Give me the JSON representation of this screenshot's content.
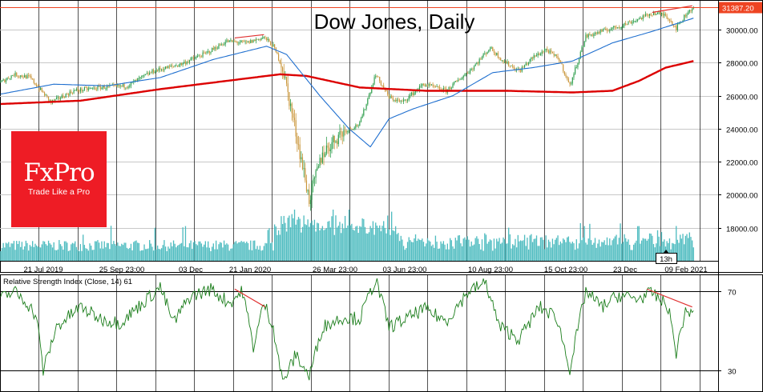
{
  "chart_data": [
    {
      "type": "candlestick",
      "title": "Dow Jones, Daily",
      "colors": {
        "up": "#2e9e4c",
        "down": "#c9963a",
        "ma_slow": "#dc0000",
        "ma_fast": "#1f6fcf",
        "volume": "#4fbcc0",
        "trendline": "#e03030",
        "price_line": "#ee4422"
      },
      "ylim": [
        16000,
        31800
      ],
      "yticks": [
        "30000.00",
        "28000.00",
        "26000.00",
        "24000.00",
        "22000.00",
        "20000.00",
        "18000.00"
      ],
      "yticks_values": [
        30000,
        28000,
        26000,
        24000,
        22000,
        20000,
        18000
      ],
      "x_tick_labels": [
        "21 Jul 2019",
        "25 Sep 23:00",
        "03 Dec",
        "21 Jan 2020",
        "26 Mar 23:00",
        "03 Jun 23:00",
        "10 Aug 23:00",
        "15 Oct 23:00",
        "23 Dec",
        "09 Feb 2021"
      ],
      "last_price_label": "31387.20",
      "last_price": 31387.2,
      "timer_label": "13h",
      "anchors": [
        {
          "t": 0,
          "price": 26800
        },
        {
          "t": 10,
          "price": 27300
        },
        {
          "t": 22,
          "price": 27100
        },
        {
          "t": 38,
          "price": 25600
        },
        {
          "t": 55,
          "price": 26300
        },
        {
          "t": 75,
          "price": 26500
        },
        {
          "t": 95,
          "price": 26600
        },
        {
          "t": 115,
          "price": 27500
        },
        {
          "t": 135,
          "price": 27900
        },
        {
          "t": 155,
          "price": 28600
        },
        {
          "t": 170,
          "price": 29300
        },
        {
          "t": 185,
          "price": 29200
        },
        {
          "t": 198,
          "price": 29550
        },
        {
          "t": 205,
          "price": 29000
        },
        {
          "t": 212,
          "price": 27700
        },
        {
          "t": 222,
          "price": 23800
        },
        {
          "t": 232,
          "price": 19700
        },
        {
          "t": 242,
          "price": 22500
        },
        {
          "t": 255,
          "price": 23700
        },
        {
          "t": 270,
          "price": 24300
        },
        {
          "t": 282,
          "price": 27300
        },
        {
          "t": 292,
          "price": 25900
        },
        {
          "t": 302,
          "price": 25600
        },
        {
          "t": 318,
          "price": 26700
        },
        {
          "t": 335,
          "price": 26300
        },
        {
          "t": 355,
          "price": 27700
        },
        {
          "t": 368,
          "price": 28900
        },
        {
          "t": 378,
          "price": 28100
        },
        {
          "t": 390,
          "price": 27500
        },
        {
          "t": 400,
          "price": 28300
        },
        {
          "t": 410,
          "price": 28800
        },
        {
          "t": 420,
          "price": 28200
        },
        {
          "t": 428,
          "price": 26600
        },
        {
          "t": 440,
          "price": 29600
        },
        {
          "t": 452,
          "price": 29900
        },
        {
          "t": 465,
          "price": 30200
        },
        {
          "t": 478,
          "price": 30600
        },
        {
          "t": 490,
          "price": 31000
        },
        {
          "t": 500,
          "price": 30900
        },
        {
          "t": 508,
          "price": 30100
        },
        {
          "t": 516,
          "price": 31000
        },
        {
          "t": 521,
          "price": 31387
        }
      ],
      "ma_fast": [
        {
          "t": 0,
          "price": 26100
        },
        {
          "t": 40,
          "price": 26700
        },
        {
          "t": 80,
          "price": 26600
        },
        {
          "t": 120,
          "price": 27100
        },
        {
          "t": 160,
          "price": 28200
        },
        {
          "t": 200,
          "price": 29000
        },
        {
          "t": 215,
          "price": 28500
        },
        {
          "t": 240,
          "price": 26000
        },
        {
          "t": 262,
          "price": 24000
        },
        {
          "t": 278,
          "price": 22900
        },
        {
          "t": 292,
          "price": 24600
        },
        {
          "t": 310,
          "price": 25200
        },
        {
          "t": 340,
          "price": 26000
        },
        {
          "t": 370,
          "price": 27400
        },
        {
          "t": 400,
          "price": 27700
        },
        {
          "t": 430,
          "price": 28100
        },
        {
          "t": 460,
          "price": 29200
        },
        {
          "t": 490,
          "price": 29900
        },
        {
          "t": 521,
          "price": 30700
        }
      ],
      "ma_slow": [
        {
          "t": 0,
          "price": 25500
        },
        {
          "t": 60,
          "price": 25700
        },
        {
          "t": 120,
          "price": 26400
        },
        {
          "t": 170,
          "price": 26900
        },
        {
          "t": 210,
          "price": 27300
        },
        {
          "t": 230,
          "price": 27200
        },
        {
          "t": 270,
          "price": 26500
        },
        {
          "t": 320,
          "price": 26300
        },
        {
          "t": 380,
          "price": 26300
        },
        {
          "t": 430,
          "price": 26200
        },
        {
          "t": 460,
          "price": 26300
        },
        {
          "t": 480,
          "price": 26900
        },
        {
          "t": 500,
          "price": 27700
        },
        {
          "t": 521,
          "price": 28100
        }
      ],
      "trendlines": [
        {
          "from": {
            "t": 176,
            "price": 29500
          },
          "to": {
            "t": 198,
            "price": 29700
          }
        },
        {
          "from": {
            "t": 490,
            "price": 31050
          },
          "to": {
            "t": 520,
            "price": 31450
          }
        }
      ]
    },
    {
      "type": "line",
      "title": "Relative Strength Index (Close, 14) 61",
      "ylim": [
        20,
        78
      ],
      "levels": [
        70,
        30
      ],
      "level_labels": [
        "70",
        "30"
      ],
      "anchors": [
        {
          "t": 0,
          "value": 66
        },
        {
          "t": 10,
          "value": 70
        },
        {
          "t": 20,
          "value": 64
        },
        {
          "t": 27,
          "value": 57
        },
        {
          "t": 32,
          "value": 30
        },
        {
          "t": 42,
          "value": 52
        },
        {
          "t": 60,
          "value": 62
        },
        {
          "t": 75,
          "value": 56
        },
        {
          "t": 90,
          "value": 54
        },
        {
          "t": 105,
          "value": 63
        },
        {
          "t": 120,
          "value": 72
        },
        {
          "t": 130,
          "value": 54
        },
        {
          "t": 142,
          "value": 67
        },
        {
          "t": 158,
          "value": 71
        },
        {
          "t": 172,
          "value": 64
        },
        {
          "t": 182,
          "value": 70
        },
        {
          "t": 190,
          "value": 42
        },
        {
          "t": 198,
          "value": 64
        },
        {
          "t": 205,
          "value": 52
        },
        {
          "t": 212,
          "value": 24
        },
        {
          "t": 222,
          "value": 38
        },
        {
          "t": 232,
          "value": 27
        },
        {
          "t": 242,
          "value": 52
        },
        {
          "t": 258,
          "value": 57
        },
        {
          "t": 270,
          "value": 56
        },
        {
          "t": 282,
          "value": 76
        },
        {
          "t": 292,
          "value": 52
        },
        {
          "t": 305,
          "value": 56
        },
        {
          "t": 318,
          "value": 61
        },
        {
          "t": 335,
          "value": 55
        },
        {
          "t": 352,
          "value": 70
        },
        {
          "t": 365,
          "value": 74
        },
        {
          "t": 375,
          "value": 52
        },
        {
          "t": 390,
          "value": 46
        },
        {
          "t": 405,
          "value": 62
        },
        {
          "t": 418,
          "value": 57
        },
        {
          "t": 428,
          "value": 31
        },
        {
          "t": 440,
          "value": 70
        },
        {
          "t": 452,
          "value": 62
        },
        {
          "t": 465,
          "value": 68
        },
        {
          "t": 478,
          "value": 66
        },
        {
          "t": 490,
          "value": 69
        },
        {
          "t": 502,
          "value": 62
        },
        {
          "t": 508,
          "value": 39
        },
        {
          "t": 514,
          "value": 58
        },
        {
          "t": 521,
          "value": 61
        }
      ],
      "trendline": {
        "from": {
          "t": 176,
          "value": 71
        },
        "to": {
          "t": 199,
          "value": 62
        }
      },
      "trendline2": {
        "from": {
          "t": 486,
          "value": 71
        },
        "to": {
          "t": 520,
          "value": 62
        }
      }
    }
  ],
  "logo": {
    "brand": "FxPro",
    "tagline": "Trade Like a Pro"
  }
}
